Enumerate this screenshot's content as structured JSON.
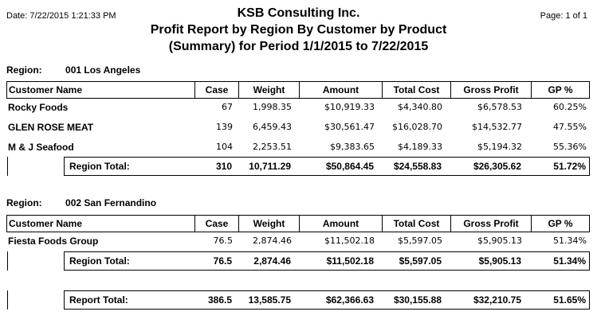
{
  "header": {
    "date": "Date: 7/22/2015 1:21:33 PM",
    "company": "KSB Consulting Inc.",
    "title_line1": "Profit Report by Region By Customer by Product",
    "title_line2": "(Summary) for Period 1/1/2015 to 7/22/2015",
    "page": "Page: 1 of 1"
  },
  "columns": [
    "Customer Name",
    "Case",
    "Weight",
    "Amount",
    "Total Cost",
    "Gross Profit",
    "GP %"
  ],
  "regions": [
    {
      "label": "Region:",
      "code": "001 Los Angeles",
      "rows": [
        {
          "name": "Rocky Foods",
          "case": "67",
          "weight": "1,998.35",
          "amount": "$10,919.33",
          "total_cost": "$4,340.80",
          "gross_profit": "$6,578.53",
          "gp": "60.25%"
        },
        {
          "name": "GLEN ROSE MEAT",
          "case": "139",
          "weight": "6,459.43",
          "amount": "$30,561.47",
          "total_cost": "$16,028.70",
          "gross_profit": "$14,532.77",
          "gp": "47.55%"
        },
        {
          "name": "M & J Seafood",
          "case": "104",
          "weight": "2,253.51",
          "amount": "$9,383.65",
          "total_cost": "$4,189.33",
          "gross_profit": "$5,194.32",
          "gp": "55.36%"
        }
      ],
      "total": {
        "label": "Region Total:",
        "case": "310",
        "weight": "10,711.29",
        "amount": "$50,864.45",
        "total_cost": "$24,558.83",
        "gross_profit": "$26,305.62",
        "gp": "51.72%"
      }
    },
    {
      "label": "Region:",
      "code": "002 San Fernandino",
      "rows": [
        {
          "name": "Fiesta Foods Group",
          "case": "76.5",
          "weight": "2,874.46",
          "amount": "$11,502.18",
          "total_cost": "$5,597.05",
          "gross_profit": "$5,905.13",
          "gp": "51.34%"
        }
      ],
      "total": {
        "label": "Region Total:",
        "case": "76.5",
        "weight": "2,874.46",
        "amount": "$11,502.18",
        "total_cost": "$5,597.05",
        "gross_profit": "$5,905.13",
        "gp": "51.34%"
      }
    }
  ],
  "report_total": {
    "label": "Report Total:",
    "case": "386.5",
    "weight": "13,585.75",
    "amount": "$62,366.63",
    "total_cost": "$30,155.88",
    "gross_profit": "$32,210.75",
    "gp": "51.65%"
  }
}
